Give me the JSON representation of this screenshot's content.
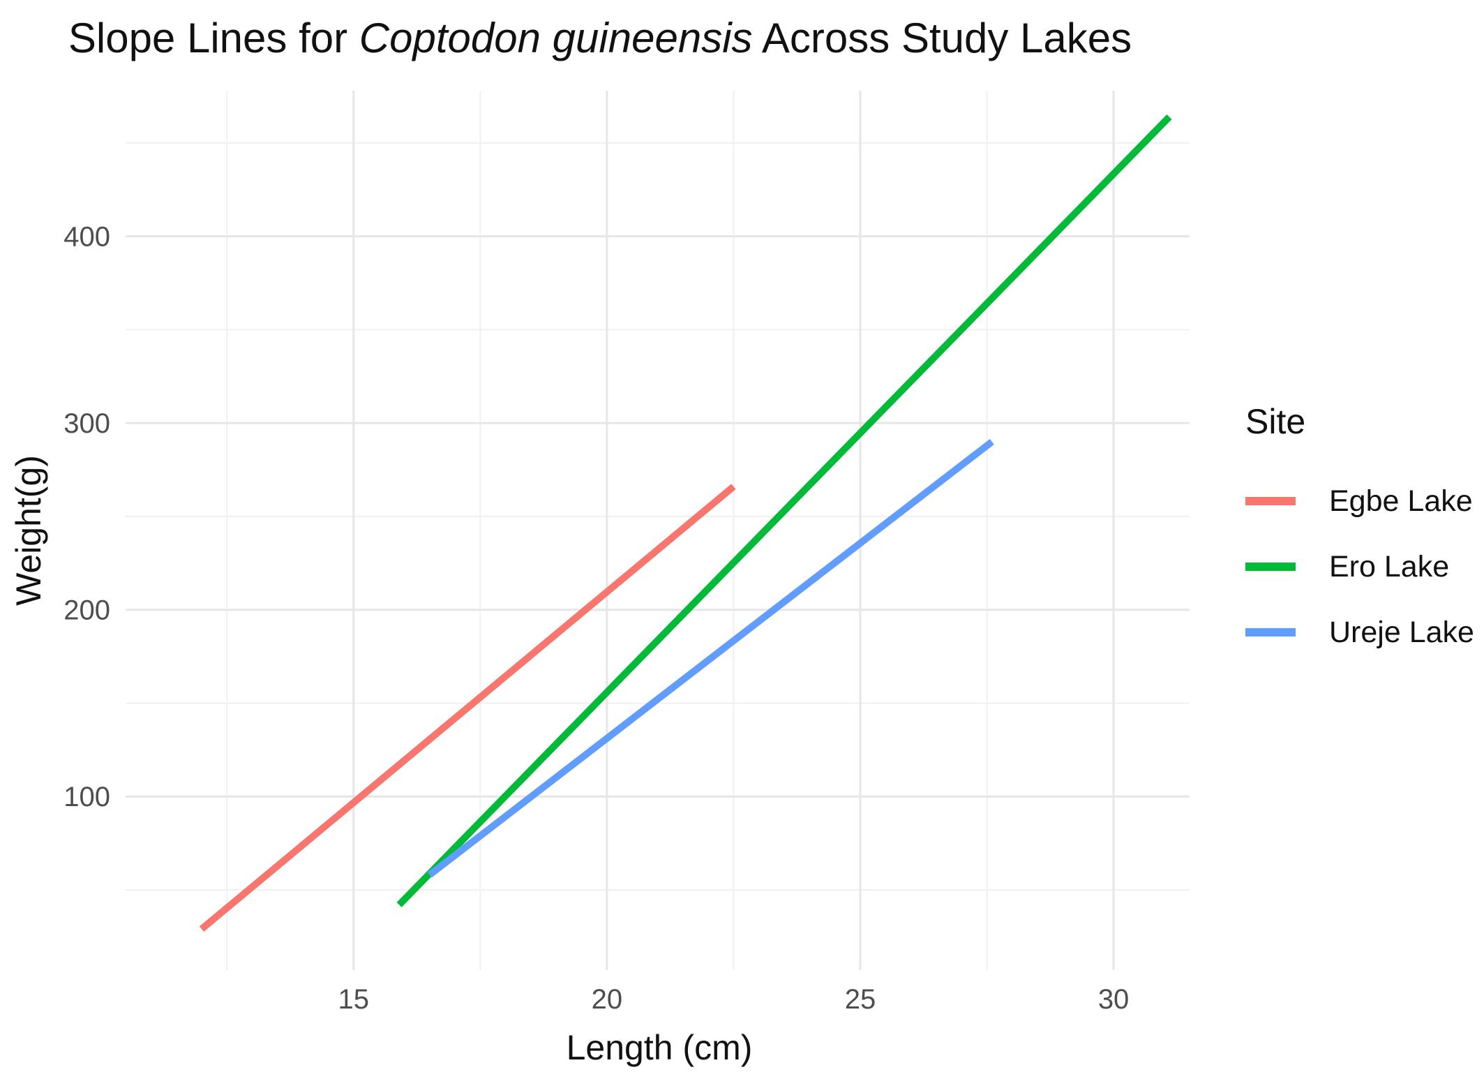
{
  "chart_data": {
    "type": "line",
    "title": {
      "prefix": "Slope Lines for ",
      "species": "Coptodon guineensis",
      "suffix": " Across Study Lakes"
    },
    "xlabel": "Length (cm)",
    "ylabel": "Weight(g)",
    "xlim": [
      10.5,
      31.5
    ],
    "ylim": [
      7,
      478
    ],
    "x_ticks": [
      15,
      20,
      25,
      30
    ],
    "x_tick_labels": [
      "15",
      "20",
      "25",
      "30"
    ],
    "x_minor_ticks": [
      12.5,
      17.5,
      22.5,
      27.5
    ],
    "y_ticks": [
      100,
      200,
      300,
      400
    ],
    "y_tick_labels": [
      "100",
      "200",
      "300",
      "400"
    ],
    "y_minor_ticks": [
      50,
      150,
      250,
      350,
      450
    ],
    "grid": true,
    "legend": {
      "title": "Site",
      "position": "right"
    },
    "series": [
      {
        "name": "Egbe Lake",
        "color": "#F8766D",
        "x": [
          12.0,
          22.5
        ],
        "y": [
          29,
          266
        ]
      },
      {
        "name": "Ero Lake",
        "color": "#00BA38",
        "x": [
          15.9,
          31.1
        ],
        "y": [
          42,
          464
        ]
      },
      {
        "name": "Ureje Lake",
        "color": "#619CFF",
        "x": [
          16.5,
          27.6
        ],
        "y": [
          58,
          290
        ]
      }
    ]
  }
}
